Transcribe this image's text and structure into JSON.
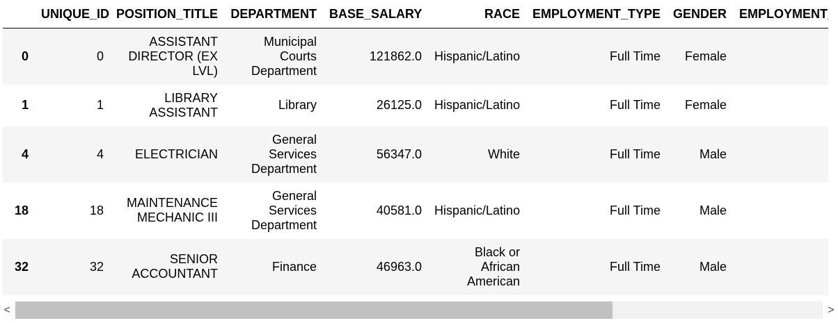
{
  "table": {
    "columns": [
      "",
      "UNIQUE_ID",
      "POSITION_TITLE",
      "DEPARTMENT",
      "BASE_SALARY",
      "RACE",
      "EMPLOYMENT_TYPE",
      "GENDER",
      "EMPLOYMENT_"
    ],
    "rows": [
      {
        "index": "0",
        "unique_id": "0",
        "position_title": "ASSISTANT DIRECTOR (EX LVL)",
        "department": "Municipal Courts Department",
        "base_salary": "121862.0",
        "race": "Hispanic/Latino",
        "employment_type": "Full Time",
        "gender": "Female",
        "employment_status": ""
      },
      {
        "index": "1",
        "unique_id": "1",
        "position_title": "LIBRARY ASSISTANT",
        "department": "Library",
        "base_salary": "26125.0",
        "race": "Hispanic/Latino",
        "employment_type": "Full Time",
        "gender": "Female",
        "employment_status": ""
      },
      {
        "index": "4",
        "unique_id": "4",
        "position_title": "ELECTRICIAN",
        "department": "General Services Department",
        "base_salary": "56347.0",
        "race": "White",
        "employment_type": "Full Time",
        "gender": "Male",
        "employment_status": ""
      },
      {
        "index": "18",
        "unique_id": "18",
        "position_title": "MAINTENANCE MECHANIC III",
        "department": "General Services Department",
        "base_salary": "40581.0",
        "race": "Hispanic/Latino",
        "employment_type": "Full Time",
        "gender": "Male",
        "employment_status": ""
      },
      {
        "index": "32",
        "unique_id": "32",
        "position_title": "SENIOR ACCOUNTANT",
        "department": "Finance",
        "base_salary": "46963.0",
        "race": "Black or African American",
        "employment_type": "Full Time",
        "gender": "Male",
        "employment_status": ""
      }
    ]
  },
  "scrollbar": {
    "left_arrow": "<",
    "right_arrow": ">"
  }
}
